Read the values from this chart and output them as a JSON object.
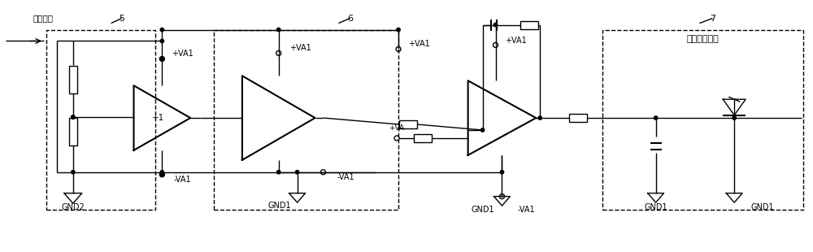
{
  "bg_color": "#ffffff",
  "line_color": "#000000",
  "fig_w": 10.0,
  "fig_h": 3.1,
  "dpi": 100,
  "xlim": [
    0,
    10
  ],
  "ylim": [
    0,
    3.1
  ],
  "labels": {
    "cap_voltage": "电容电压",
    "gnd2": "GND2",
    "gnd1": "GND1",
    "va1_p": "+VA1",
    "va1_m": "-VA1",
    "va_p": "+VA",
    "plus1": "+1",
    "box5": "5",
    "box6": "6",
    "box7": "7",
    "analog": "模拟电压信号"
  }
}
